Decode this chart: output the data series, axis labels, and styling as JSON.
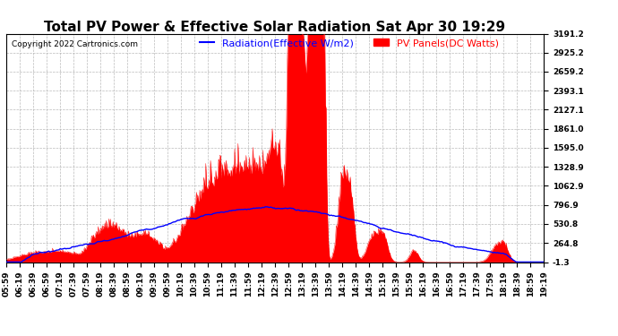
{
  "title": "Total PV Power & Effective Solar Radiation Sat Apr 30 19:29",
  "copyright": "Copyright 2022 Cartronics.com",
  "legend_radiation": "Radiation(Effective W/m2)",
  "legend_pv": "PV Panels(DC Watts)",
  "radiation_color": "blue",
  "pv_color": "red",
  "bg_color": "#ffffff",
  "grid_color": "#aaaaaa",
  "yticks": [
    -1.3,
    264.8,
    530.8,
    796.9,
    1062.9,
    1328.9,
    1595.0,
    1861.0,
    2127.1,
    2393.1,
    2659.2,
    2925.2,
    3191.2
  ],
  "ymin": -1.3,
  "ymax": 3191.2,
  "title_fontsize": 11,
  "axis_fontsize": 6.5,
  "legend_fontsize": 8,
  "copyright_fontsize": 6.5
}
